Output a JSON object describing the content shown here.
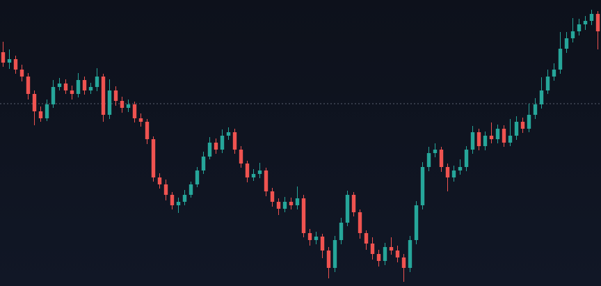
{
  "chart_data": {
    "type": "candlestick",
    "ylim": [
      0,
      411
    ],
    "up_color": "#26a69a",
    "down_color": "#ef5350",
    "reference_line": 262,
    "open": [
      336,
      321,
      326,
      311,
      301,
      276,
      251,
      241,
      261,
      286,
      291,
      281,
      276,
      296,
      281,
      286,
      301,
      246,
      281,
      266,
      256,
      261,
      241,
      236,
      211,
      156,
      146,
      131,
      116,
      121,
      131,
      146,
      166,
      186,
      206,
      196,
      216,
      221,
      196,
      176,
      156,
      161,
      166,
      136,
      121,
      111,
      121,
      116,
      126,
      76,
      66,
      71,
      51,
      26,
      66,
      91,
      131,
      106,
      76,
      61,
      46,
      36,
      56,
      51,
      41,
      26,
      66,
      116,
      171,
      191,
      196,
      171,
      156,
      166,
      171,
      196,
      221,
      201,
      216,
      211,
      226,
      206,
      216,
      236,
      226,
      246,
      261,
      281,
      301,
      311,
      341,
      356,
      366,
      376,
      381,
      391
    ],
    "high": [
      351,
      340,
      331,
      318,
      306,
      281,
      258,
      268,
      296,
      299,
      297,
      288,
      306,
      301,
      292,
      313,
      305,
      297,
      287,
      272,
      268,
      265,
      248,
      240,
      215,
      162,
      153,
      135,
      127,
      138,
      150,
      171,
      193,
      214,
      212,
      225,
      228,
      226,
      201,
      180,
      168,
      177,
      170,
      141,
      126,
      128,
      127,
      143,
      131,
      82,
      78,
      75,
      56,
      72,
      98,
      137,
      135,
      110,
      80,
      70,
      52,
      62,
      70,
      58,
      46,
      72,
      122,
      178,
      200,
      205,
      200,
      176,
      173,
      182,
      201,
      230,
      226,
      222,
      235,
      232,
      231,
      240,
      244,
      242,
      262,
      270,
      300,
      311,
      320,
      365,
      365,
      385,
      384,
      388,
      397,
      395
    ],
    "low": [
      315,
      312,
      305,
      294,
      268,
      231,
      236,
      237,
      256,
      281,
      276,
      268,
      271,
      275,
      276,
      280,
      236,
      240,
      259,
      249,
      250,
      235,
      229,
      204,
      150,
      140,
      123,
      110,
      105,
      116,
      127,
      142,
      161,
      182,
      190,
      191,
      210,
      190,
      170,
      149,
      151,
      155,
      129,
      114,
      102,
      106,
      110,
      110,
      70,
      58,
      60,
      40,
      11,
      20,
      60,
      86,
      100,
      68,
      52,
      38,
      28,
      30,
      45,
      34,
      6,
      20,
      60,
      110,
      165,
      185,
      164,
      136,
      150,
      160,
      165,
      190,
      195,
      195,
      205,
      205,
      200,
      201,
      210,
      220,
      221,
      240,
      255,
      276,
      295,
      305,
      335,
      350,
      360,
      368,
      375,
      340
    ],
    "close": [
      321,
      326,
      311,
      301,
      276,
      251,
      241,
      261,
      286,
      291,
      281,
      276,
      296,
      281,
      286,
      301,
      246,
      281,
      266,
      256,
      261,
      241,
      236,
      211,
      156,
      146,
      131,
      116,
      121,
      131,
      146,
      166,
      186,
      206,
      196,
      216,
      221,
      196,
      176,
      156,
      161,
      166,
      136,
      121,
      111,
      121,
      116,
      126,
      76,
      66,
      71,
      51,
      26,
      66,
      91,
      131,
      106,
      76,
      61,
      46,
      36,
      56,
      51,
      41,
      26,
      66,
      116,
      171,
      191,
      196,
      171,
      156,
      166,
      171,
      196,
      221,
      201,
      216,
      211,
      226,
      206,
      216,
      236,
      226,
      246,
      261,
      281,
      301,
      311,
      341,
      356,
      366,
      376,
      381,
      391,
      366
    ]
  }
}
